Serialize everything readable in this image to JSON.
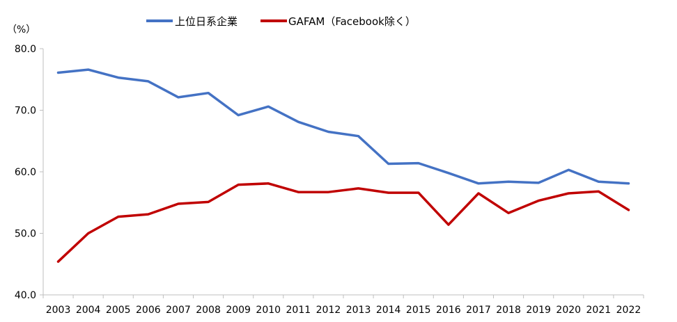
{
  "chart_data": {
    "type": "line",
    "unit_label": "（%）",
    "x": [
      "2003",
      "2004",
      "2005",
      "2006",
      "2007",
      "2008",
      "2009",
      "2010",
      "2011",
      "2012",
      "2013",
      "2014",
      "2015",
      "2016",
      "2017",
      "2018",
      "2019",
      "2020",
      "2021",
      "2022"
    ],
    "ylim": [
      40,
      80
    ],
    "yticks": [
      "40.0",
      "50.0",
      "60.0",
      "70.0",
      "80.0"
    ],
    "ytick_values": [
      40,
      50,
      60,
      70,
      80
    ],
    "grid": false,
    "legend_position": "top",
    "series": [
      {
        "name": "上位日系企業",
        "color": "#4472C4",
        "values": [
          76.1,
          76.6,
          75.3,
          74.7,
          72.1,
          72.8,
          69.2,
          70.6,
          68.1,
          66.5,
          65.8,
          61.3,
          61.4,
          59.8,
          58.1,
          58.4,
          58.2,
          60.3,
          58.4,
          58.1
        ]
      },
      {
        "name": "GAFAM（Facebook除く）",
        "color": "#C00000",
        "values": [
          45.4,
          50.0,
          52.7,
          53.1,
          54.8,
          55.1,
          57.9,
          58.1,
          56.7,
          56.7,
          57.3,
          56.6,
          56.6,
          51.4,
          56.5,
          53.3,
          55.3,
          56.5,
          56.8,
          53.8
        ]
      }
    ]
  }
}
